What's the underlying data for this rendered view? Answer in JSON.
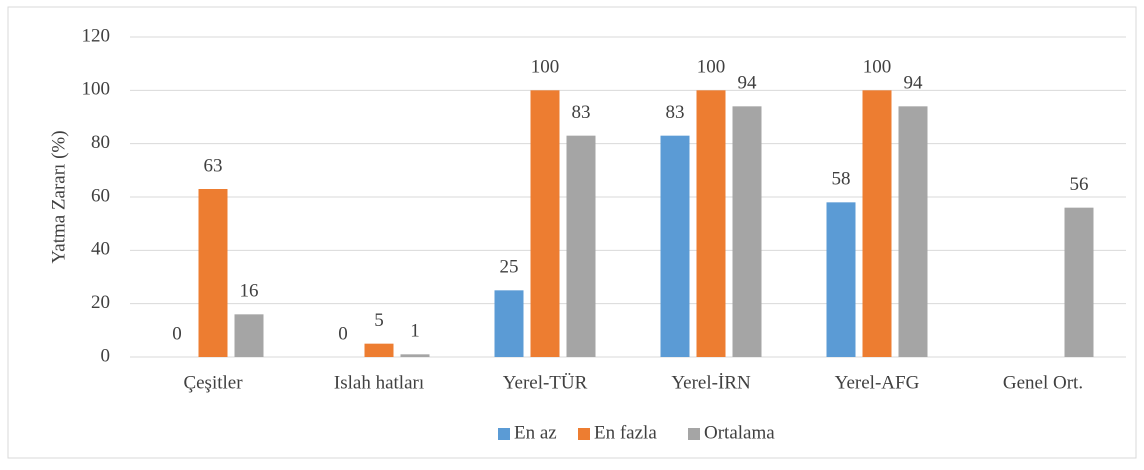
{
  "chart_data": {
    "type": "bar",
    "ylabel": "Yatma Zararı (%)",
    "categories": [
      "Çeşitler",
      "Islah hatları",
      "Yerel-TÜR",
      "Yerel-İRN",
      "Yerel-AFG",
      "Genel Ort."
    ],
    "series": [
      {
        "name": "En az",
        "color": "#5b9bd5",
        "values": [
          0,
          0,
          25,
          83,
          58,
          null
        ]
      },
      {
        "name": "En fazla",
        "color": "#ed7d31",
        "values": [
          63,
          5,
          100,
          100,
          100,
          null
        ]
      },
      {
        "name": "Ortalama",
        "color": "#a5a5a5",
        "values": [
          16,
          1,
          83,
          94,
          94,
          56
        ]
      }
    ],
    "ylim": [
      0,
      120
    ],
    "yticks": [
      0,
      20,
      40,
      60,
      80,
      100,
      120
    ],
    "grid": true,
    "legend": "bottom"
  }
}
